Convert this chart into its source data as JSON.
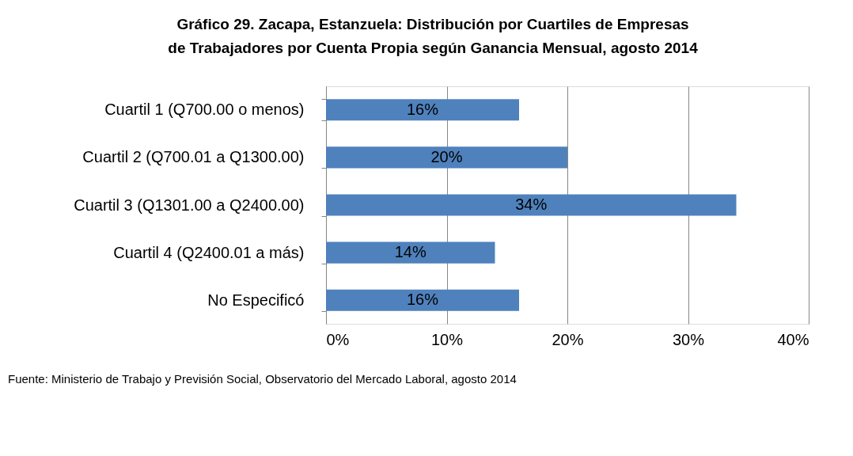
{
  "chart_data": {
    "type": "bar",
    "orientation": "horizontal",
    "title": "Gráfico 29. Zacapa, Estanzuela: Distribución por Cuartiles de Empresas de Trabajadores por Cuenta Propia según Ganancia Mensual, agosto 2014",
    "categories": [
      "Cuartil 1 (Q700.00 o menos)",
      "Cuartil 2 (Q700.01 a Q1300.00)",
      "Cuartil 3 (Q1301.00 a Q2400.00)",
      "Cuartil 4 (Q2400.01 a más)",
      "No Especificó"
    ],
    "values": [
      16,
      20,
      34,
      14,
      16
    ],
    "value_labels": [
      "16%",
      "20%",
      "34%",
      "14%",
      "16%"
    ],
    "color": "#4f81bd",
    "xlim": [
      0,
      40
    ],
    "xticks": [
      {
        "value": 0,
        "label": "0%"
      },
      {
        "value": 10,
        "label": "10%"
      },
      {
        "value": 20,
        "label": "20%"
      },
      {
        "value": 30,
        "label": "30%"
      },
      {
        "value": 40,
        "label": "40%"
      }
    ],
    "grid": "x",
    "annotations": [
      "Fuente: Ministerio de Trabajo y Previsión Social, Observatorio del Mercado Laboral, agosto 2014"
    ]
  }
}
